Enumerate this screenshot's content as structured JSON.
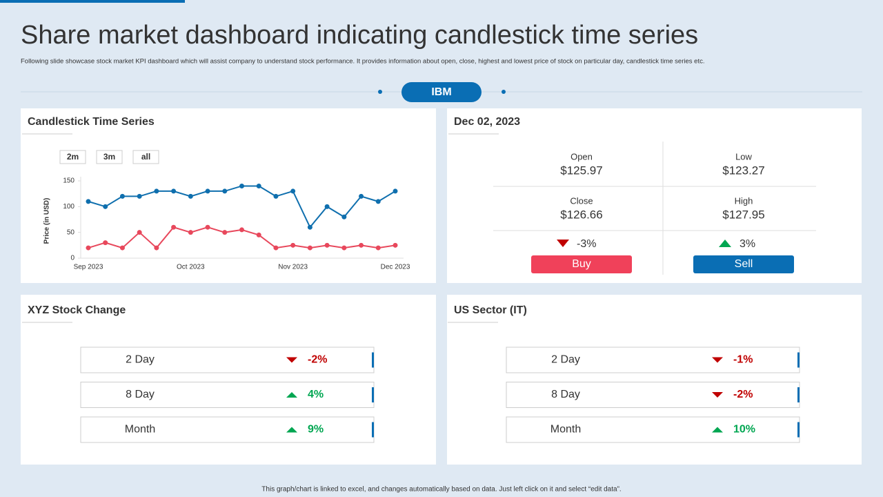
{
  "header": {
    "title": "Share market dashboard indicating candlestick time series",
    "subtitle": "Following slide showcase stock market KPI  dashboard which will assist company to understand stock performance. It provides information about open, close, highest and lowest price of stock on particular day, candlestick time series etc.",
    "ticker": "IBM"
  },
  "chart_data": {
    "type": "line",
    "title": "Candlestick Time Series",
    "ranges": [
      "2m",
      "3m",
      "all"
    ],
    "y_label": "Price (in USD)",
    "categories": [
      "Sep 2023",
      null,
      null,
      null,
      null,
      null,
      "Oct 2023",
      null,
      null,
      null,
      null,
      null,
      "Nov 2023",
      null,
      null,
      null,
      null,
      null,
      "Dec 2023"
    ],
    "series": [
      {
        "color": "#0f6fae",
        "values": [
          110,
          100,
          120,
          120,
          130,
          130,
          120,
          130,
          130,
          140,
          140,
          120,
          130,
          60,
          100,
          80,
          120,
          110,
          130
        ]
      },
      {
        "color": "#e8485c",
        "values": [
          20,
          30,
          20,
          50,
          20,
          60,
          50,
          60,
          50,
          55,
          45,
          20,
          25,
          20,
          25,
          20,
          25,
          20,
          25
        ]
      }
    ],
    "ylim": [
      0,
      150
    ],
    "yticks": [
      0,
      50,
      100,
      150
    ]
  },
  "quote": {
    "title": "Dec 02, 2023",
    "cells": [
      {
        "label": "Open",
        "value": "$125.97"
      },
      {
        "label": "Low",
        "value": "$123.27"
      },
      {
        "label": "Close",
        "value": "$126.66"
      },
      {
        "label": "High",
        "value": "$127.95"
      }
    ],
    "down": "-3%",
    "up": "3%",
    "buy": "Buy",
    "sell": "Sell"
  },
  "panels": [
    {
      "title": "XYZ  Stock Change",
      "rows": [
        {
          "label": "2 Day",
          "change": "-2%"
        },
        {
          "label": "8 Day",
          "change": "4%"
        },
        {
          "label": "Month",
          "change": "9%"
        }
      ]
    },
    {
      "title": "US Sector (IT)",
      "rows": [
        {
          "label": "2 Day",
          "change": "-1%"
        },
        {
          "label": "8 Day",
          "change": "-2%"
        },
        {
          "label": "Month",
          "change": "10%"
        }
      ]
    }
  ],
  "footer": "This graph/chart is linked to excel, and changes automatically based on data. Just left click on it and select “edit data”."
}
